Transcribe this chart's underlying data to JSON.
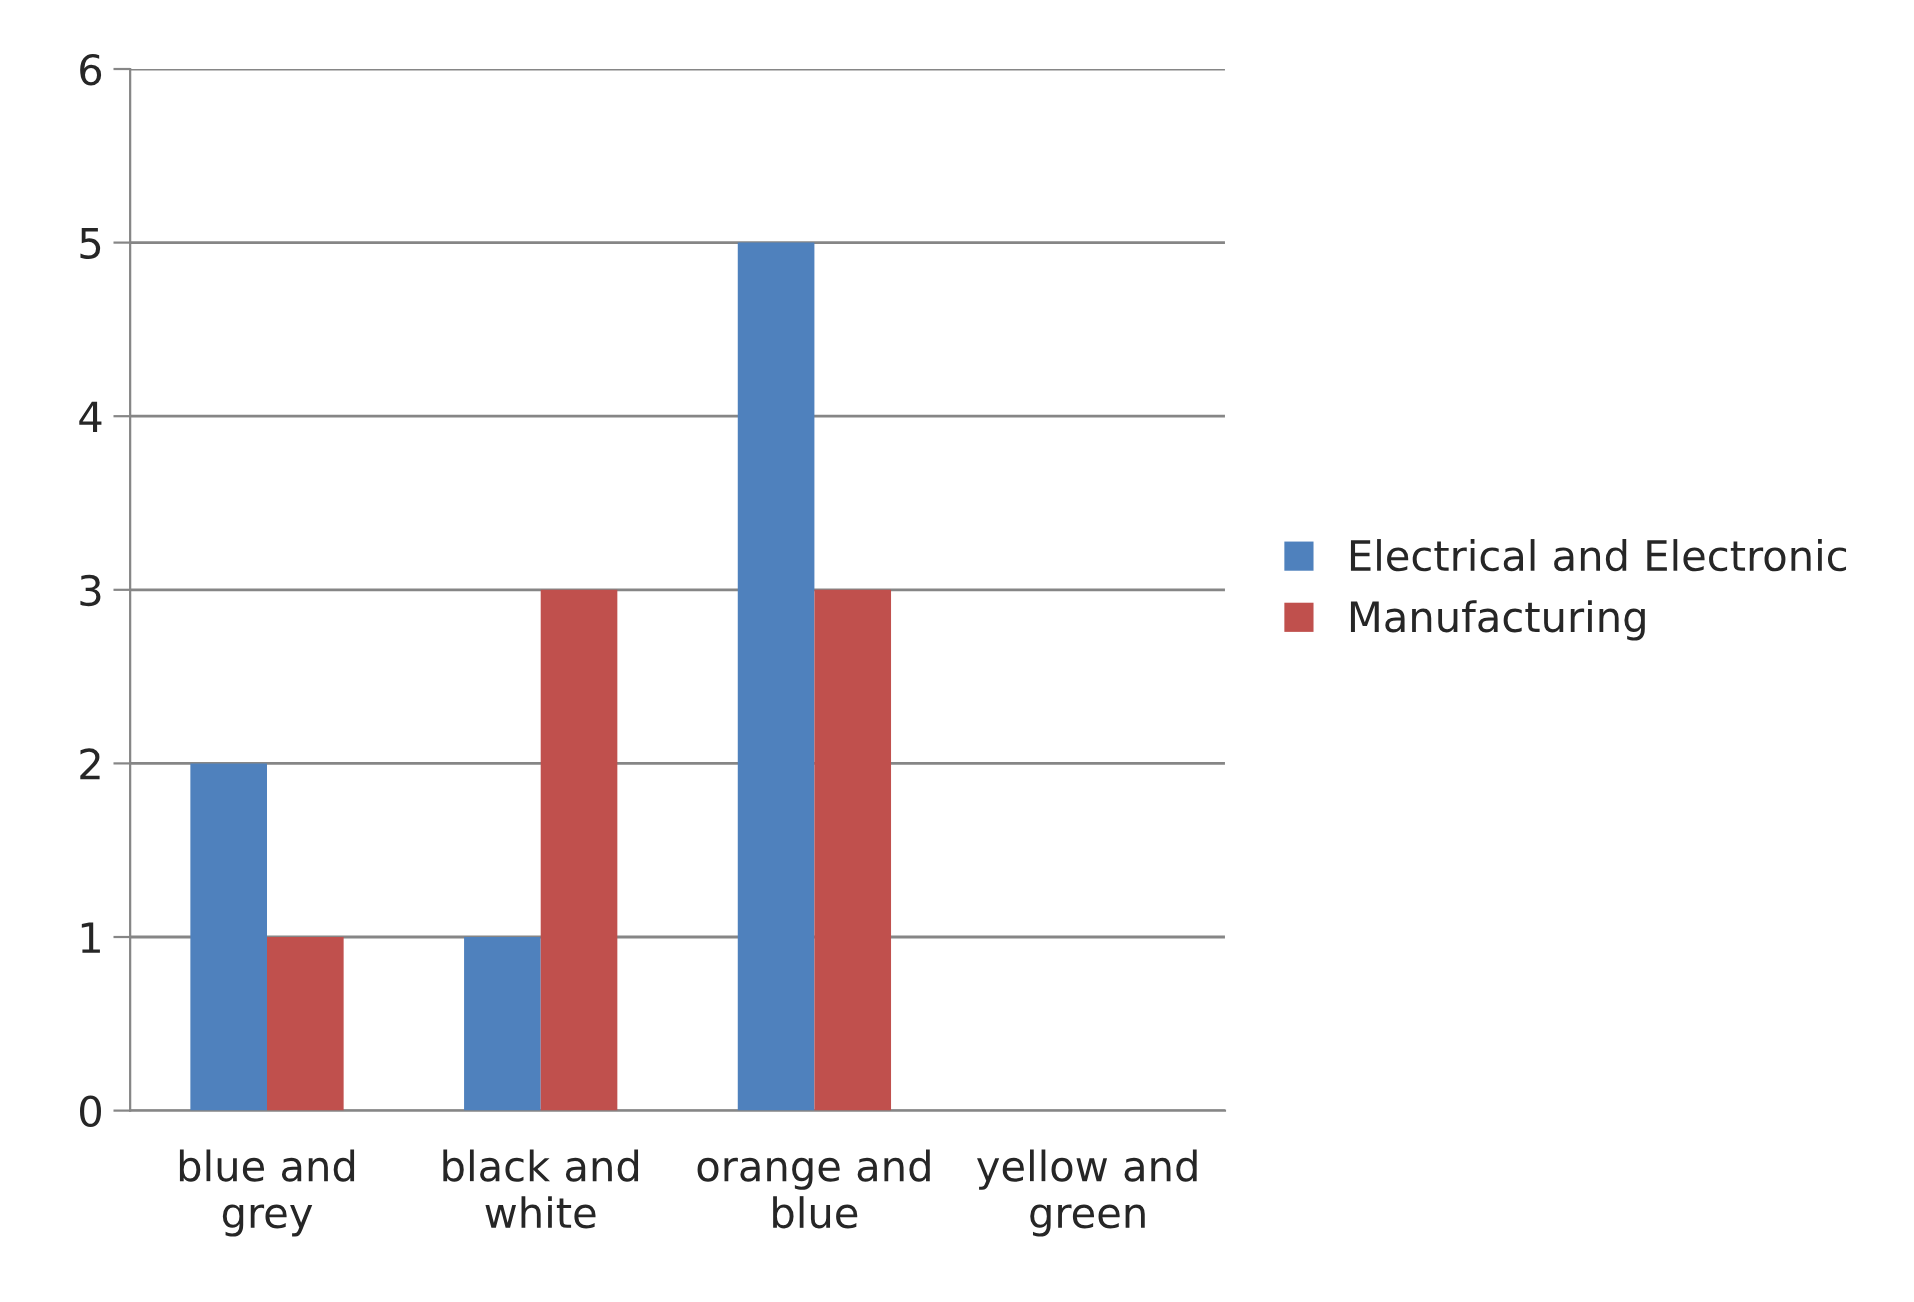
{
  "chart_data": {
    "type": "bar",
    "categories": [
      "blue and grey",
      "black and white",
      "orange and blue",
      "yellow and green"
    ],
    "series": [
      {
        "name": "Electrical and Electronic",
        "color": "#4f81bd",
        "values": [
          2,
          1,
          5,
          0
        ]
      },
      {
        "name": "Manufacturing",
        "color": "#c0504d",
        "values": [
          1,
          3,
          3,
          0
        ]
      }
    ],
    "ylim": [
      0,
      6
    ],
    "yticks": [
      0,
      1,
      2,
      3,
      4,
      5,
      6
    ],
    "grid": "y",
    "legend": "right"
  }
}
